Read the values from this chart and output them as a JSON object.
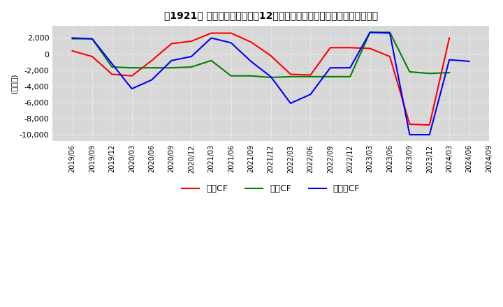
{
  "title": "　1921、 キャッシュフローの12か月移動合計の対前年同期増減額の推移",
  "title_prefix": "　1921、",
  "title_main": "キャッシュフローの12か月移動合計の対前年同期増減額の推移",
  "ylabel": "(百万円)",
  "ylim": [
    -10800,
    3500
  ],
  "yticks": [
    2000,
    0,
    -2000,
    -4000,
    -6000,
    -8000,
    -10000
  ],
  "background_color": "#ffffff",
  "plot_bg_color": "#d8d8d8",
  "grid_color": "#ffffff",
  "grid_style": "dotted",
  "legend_labels": [
    "営業CF",
    "投資CF",
    "フリーCF"
  ],
  "legend_colors": [
    "#ff0000",
    "#008000",
    "#0000ff"
  ],
  "dates": [
    "2019/06",
    "2019/09",
    "2019/12",
    "2020/03",
    "2020/06",
    "2020/09",
    "2020/12",
    "2021/03",
    "2021/06",
    "2021/09",
    "2021/12",
    "2022/03",
    "2022/06",
    "2022/09",
    "2022/12",
    "2023/03",
    "2023/06",
    "2023/09",
    "2023/12",
    "2024/03",
    "2024/06",
    "2024/09"
  ],
  "operating_cf": [
    400,
    -300,
    -2500,
    -2700,
    -800,
    1300,
    1600,
    2600,
    2600,
    1500,
    -200,
    -2500,
    -2600,
    800,
    800,
    700,
    -300,
    -8700,
    -8800,
    2000,
    null,
    null
  ],
  "investing_cf": [
    1900,
    1900,
    -1600,
    -1700,
    -1700,
    -1700,
    -1600,
    -800,
    -2700,
    -2700,
    -2900,
    -2800,
    -2800,
    -2800,
    -2800,
    2700,
    2700,
    -2200,
    -2400,
    -2300,
    null,
    null
  ],
  "free_cf": [
    2000,
    1900,
    -1200,
    -4300,
    -3200,
    -800,
    -300,
    2000,
    1400,
    -900,
    -2800,
    -6100,
    -5000,
    -1700,
    -1700,
    2700,
    2600,
    -10000,
    -10000,
    -700,
    -900,
    null
  ]
}
